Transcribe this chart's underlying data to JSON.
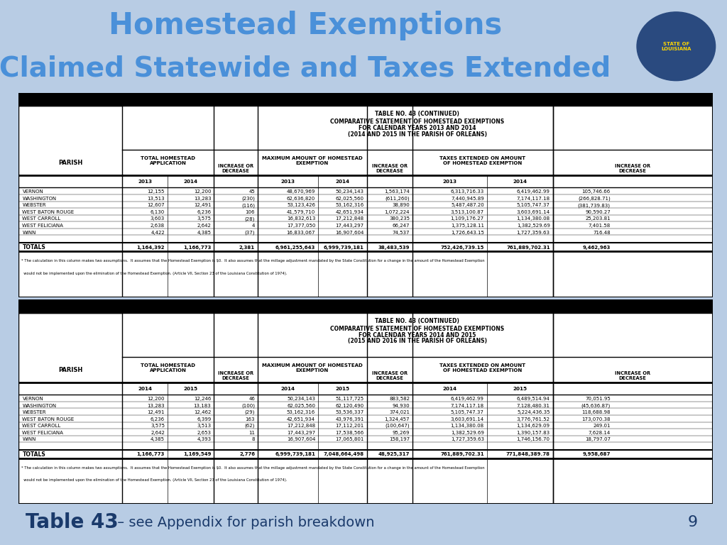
{
  "title_line1": "Homestead Exemptions",
  "title_line2": "Claimed Statewide and Taxes Extended",
  "title_color": "#4a90d9",
  "bg_color": "#000000",
  "slide_bg": "#b8cce4",
  "footer_bold": "Table 43",
  "footer_normal": " – see Appendix for parish breakdown",
  "page_num": "9",
  "table1_title1": "TABLE NO. 43 (CONTINUED)",
  "table1_title2": "COMPARATIVE STATEMENT OF HOMESTEAD EXEMPTIONS",
  "table1_title3": "FOR CALENDAR YEARS 2013 AND 2014",
  "table1_title4": "(2014 AND 2015 IN THE PARISH OF ORLEANS)",
  "table2_title1": "TABLE NO. 43 (CONTINUED)",
  "table2_title2": "COMPARATIVE STATEMENT OF HOMESTEAD EXEMPTIONS",
  "table2_title3": "FOR CALENDAR YEARS 2014 AND 2015",
  "table2_title4": "(2015 AND 2016 IN THE PARISH OF ORLEANS)",
  "table1_rows": [
    [
      "VERNON",
      "12,155",
      "12,200",
      "45",
      "48,670,969",
      "50,234,143",
      "1,563,174",
      "6,313,716.33",
      "6,419,462.99",
      "105,746.66"
    ],
    [
      "WASHINGTON",
      "13,513",
      "13,283",
      "(230)",
      "62,636,820",
      "62,025,560",
      "(611,260)",
      "7,440,945.89",
      "7,174,117.18",
      "(266,828.71)"
    ],
    [
      "WEBSTER",
      "12,607",
      "12,491",
      "(116)",
      "53,123,426",
      "53,162,316",
      "38,890",
      "5,487,487.20",
      "5,105,747.37",
      "(381,739.83)"
    ],
    [
      "WEST BATON ROUGE",
      "6,130",
      "6,236",
      "106",
      "41,579,710",
      "42,651,934",
      "1,072,224",
      "3,513,100.87",
      "3,603,691.14",
      "90,590.27"
    ],
    [
      "WEST CARROLL",
      "3,603",
      "3,575",
      "(28)",
      "16,832,613",
      "17,212,848",
      "380,235",
      "1,109,176.27",
      "1,134,380.08",
      "25,203.81"
    ],
    [
      "WEST FELICIANA",
      "2,638",
      "2,642",
      "4",
      "17,377,050",
      "17,443,297",
      "66,247",
      "1,375,128.11",
      "1,382,529.69",
      "7,401.58"
    ],
    [
      "WINN",
      "4,422",
      "4,385",
      "(37)",
      "16,833,067",
      "16,907,604",
      "74,537",
      "1,726,643.15",
      "1,727,359.63",
      "716.48"
    ]
  ],
  "table1_totals": [
    "TOTALS",
    "1,164,392",
    "1,166,773",
    "2,381",
    "6,961,255,643",
    "6,999,739,181",
    "38,483,539",
    "752,426,739.15",
    "761,889,702.31",
    "9,462,963"
  ],
  "table2_rows": [
    [
      "VERNON",
      "12,200",
      "12,246",
      "46",
      "50,234,143",
      "51,117,725",
      "883,582",
      "6,419,462.99",
      "6,489,514.94",
      "70,051.95"
    ],
    [
      "WASHINGTON",
      "13,283",
      "13,183",
      "(100)",
      "62,025,560",
      "62,120,490",
      "94,930",
      "7,174,117.18",
      "7,128,480.31",
      "(45,636.87)"
    ],
    [
      "WEBSTER",
      "12,491",
      "12,462",
      "(29)",
      "53,162,316",
      "53,536,337",
      "374,021",
      "5,105,747.37",
      "5,224,436.35",
      "118,688.98"
    ],
    [
      "WEST BATON ROUGE",
      "6,236",
      "6,399",
      "163",
      "42,651,934",
      "43,976,391",
      "1,324,457",
      "3,603,691.14",
      "3,776,761.52",
      "173,070.38"
    ],
    [
      "WEST CARROLL",
      "3,575",
      "3,513",
      "(62)",
      "17,212,848",
      "17,112,201",
      "(100,647)",
      "1,134,380.08",
      "1,134,629.09",
      "249.01"
    ],
    [
      "WEST FELICIANA",
      "2,642",
      "2,653",
      "11",
      "17,443,297",
      "17,538,566",
      "95,269",
      "1,382,529.69",
      "1,390,157.83",
      "7,628.14"
    ],
    [
      "WINN",
      "4,385",
      "4,393",
      "8",
      "16,907,604",
      "17,065,801",
      "158,197",
      "1,727,359.63",
      "1,746,156.70",
      "18,797.07"
    ]
  ],
  "table2_totals": [
    "TOTALS",
    "1,166,773",
    "1,169,549",
    "2,776",
    "6,999,739,181",
    "7,048,664,498",
    "48,925,317",
    "761,889,702.31",
    "771,848,389.78",
    "9,958,687"
  ],
  "footnote_line1": "* The calculation in this column makes two assumptions.  It assumes that the Homestead Exemption is $0.  It also assumes that the millage adjustment mandated by the State Constitution for a change in the amount of the Homestead Exemption",
  "footnote_line2": "  would not be implemented upon the elimination of the Homestead Exemption. (Article VII, Section 23 of the Louisiana Constitution of 1974)."
}
